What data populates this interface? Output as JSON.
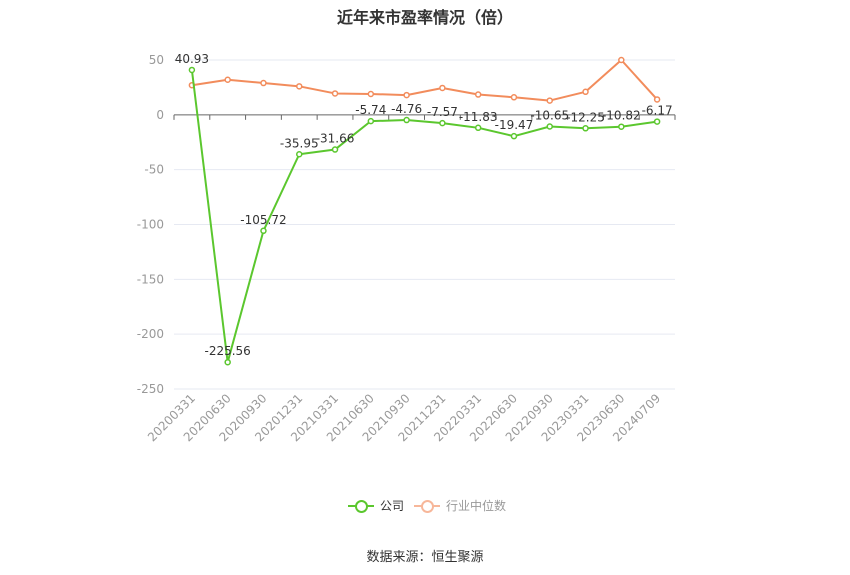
{
  "chart_data": {
    "type": "line",
    "title": "近年来市盈率情况（倍）",
    "categories": [
      "20200331",
      "20200630",
      "20200930",
      "20201231",
      "20210331",
      "20210630",
      "20210930",
      "20211231",
      "20220331",
      "20220630",
      "20220930",
      "20230331",
      "20230630",
      "20240709"
    ],
    "series": [
      {
        "name": "公司",
        "color": "#5bc72e",
        "values": [
          40.93,
          -225.56,
          -105.72,
          -35.95,
          -31.66,
          -5.74,
          -4.76,
          -7.57,
          -11.83,
          -19.47,
          -10.65,
          -12.25,
          -10.82,
          -6.17
        ],
        "labels": [
          "40.93",
          "-225.56",
          "-105.72",
          "-35.95",
          "-31.66",
          "-5.74",
          "-4.76",
          "-7.57",
          "-11.83",
          "-19.47",
          "-10.65",
          "-12.25",
          "-10.82",
          "-6.17"
        ]
      },
      {
        "name": "行业中位数",
        "color": "#f28c5c",
        "values": [
          27,
          32,
          29,
          26,
          19.5,
          19,
          18,
          24.5,
          18.5,
          16,
          13,
          21,
          50,
          14
        ]
      }
    ],
    "ylim": [
      -250,
      50
    ],
    "yticks": [
      50,
      0,
      -50,
      -100,
      -150,
      -200,
      -250
    ],
    "grid": true,
    "legend": "bottom-center"
  },
  "legend": {
    "company": "公司",
    "industry": "行业中位数"
  },
  "source": "数据来源：恒生聚源"
}
